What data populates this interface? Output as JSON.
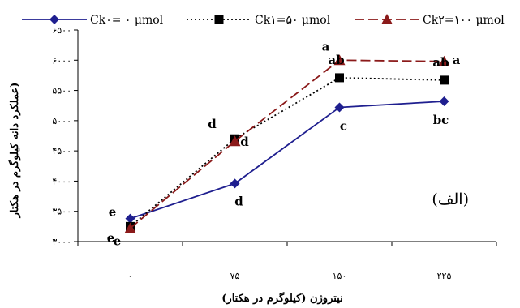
{
  "chart_data": {
    "type": "line",
    "xlabel": "نیتروژن (کیلوگرم در هکتار)",
    "ylabel": "عملکرد دانه کیلوگرم در هکتار)",
    "panel_label": "(الف)",
    "ylim": [
      3000,
      6500
    ],
    "yticks": [
      3000,
      3500,
      4000,
      4500,
      5000,
      5500,
      6000,
      6500
    ],
    "ytick_labels": [
      "۳۰۰۰",
      "۳۵۰۰",
      "۴۰۰۰",
      "۴۵۰۰",
      "۵۰۰۰",
      "۵۵۰۰",
      "۶۰۰۰",
      "۶۵۰۰"
    ],
    "categories": [
      "۰",
      "۷۵",
      "۱۵۰",
      "۲۲۵"
    ],
    "grid": false,
    "legend_position": "top",
    "series": [
      {
        "name": "Ck۰= ۰ μmol",
        "values": [
          3380,
          3960,
          5220,
          5320
        ],
        "color": "#1f1f8f",
        "marker": "diamond",
        "dash": "solid",
        "labels": [
          "e",
          "d",
          "c",
          "bc"
        ]
      },
      {
        "name": "Ck۱=۵۰ μmol",
        "values": [
          3250,
          4700,
          5710,
          5670
        ],
        "color": "#000000",
        "marker": "square",
        "dash": "dotted",
        "labels": [
          "e",
          "d",
          "ab",
          "ab"
        ]
      },
      {
        "name": "Ck۲=۱۰۰ μmol",
        "values": [
          3220,
          4660,
          6000,
          5980
        ],
        "color": "#8b1a1a",
        "marker": "triangle",
        "dash": "dashed",
        "labels": [
          "e",
          "d",
          "a",
          "a"
        ]
      }
    ]
  }
}
